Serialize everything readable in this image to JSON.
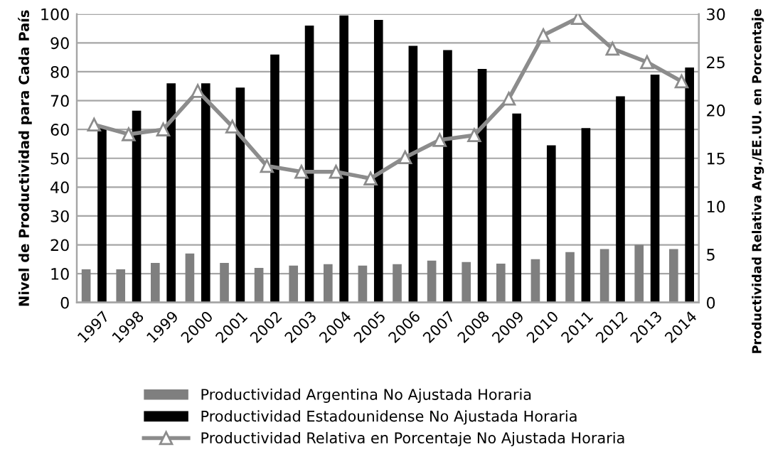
{
  "chart_data": {
    "type": "bar",
    "ylabel": "Nivel de Productividad para Cada País",
    "y2label": "Productividad Relativa Arg./EE.UU. en Porcentaje",
    "categories": [
      "1997",
      "1998",
      "1999",
      "2000",
      "2001",
      "2002",
      "2003",
      "2004",
      "2005",
      "2006",
      "2007",
      "2008",
      "2009",
      "2010",
      "2011",
      "2012",
      "2013",
      "2014"
    ],
    "series": [
      {
        "name": "Productividad Argentina No Ajustada Horaria",
        "color": "#7f7f7f",
        "values": [
          11.5,
          11.5,
          13.7,
          17,
          13.7,
          12,
          12.8,
          13.3,
          12.8,
          13.3,
          14.5,
          14,
          13.5,
          15,
          17.5,
          18.5,
          20,
          18.5
        ]
      },
      {
        "name": "Productividad Estadounidense No Ajustada Horaria",
        "color": "#000000",
        "values": [
          61,
          66.5,
          76,
          76,
          74.5,
          86,
          96,
          99.5,
          98,
          89,
          87.5,
          81,
          65.5,
          54.5,
          60.5,
          71.5,
          79,
          81.5
        ]
      },
      {
        "name": "Productividad Relativa en Porcentaje No Ajustada Horaria",
        "color": "#8c8c8c",
        "type": "line",
        "axis": "y2",
        "marker": "triangle",
        "values": [
          18.5,
          17.5,
          18,
          22,
          18.3,
          14.2,
          13.6,
          13.6,
          12.9,
          15.1,
          16.9,
          17.4,
          21.2,
          27.8,
          29.6,
          26.4,
          25,
          23
        ]
      }
    ],
    "ylim": [
      0,
      100
    ],
    "yticks": [
      0,
      10,
      20,
      30,
      40,
      50,
      60,
      70,
      80,
      90,
      100
    ],
    "y2lim": [
      0,
      30
    ],
    "y2ticks": [
      0,
      5,
      10,
      15,
      20,
      25,
      30
    ],
    "grid": "y",
    "legend": "bottom"
  }
}
